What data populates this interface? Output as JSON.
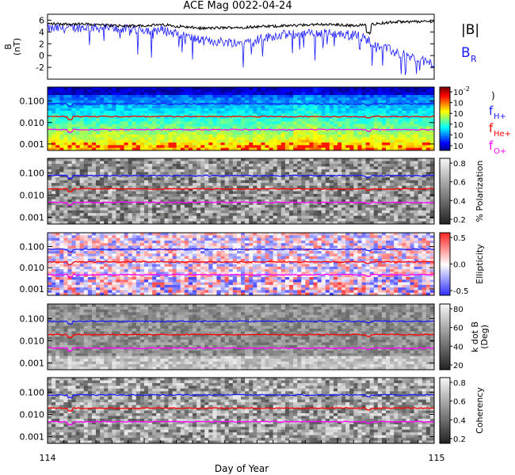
{
  "title": "ACE Mag 0022-04-24",
  "x_axis": {
    "label": "Day of Year",
    "range": [
      114,
      115
    ],
    "tick_labels": [
      "114",
      "115"
    ]
  },
  "colors": {
    "btotal": "#000000",
    "br": "#1a1aff",
    "f_h": "#1a1aff",
    "f_he": "#ff0000",
    "f_o": "#ff00ff"
  },
  "panels": [
    {
      "id": "mag",
      "type": "line",
      "ylabel_top": "B",
      "ylabel_bottom": "(nT)",
      "ylim": [
        -4,
        7
      ],
      "yticks": [
        "6",
        "4",
        "2",
        "0",
        "-2"
      ],
      "legend": [
        "|B|",
        "B"
      ],
      "legend_sub": "R"
    },
    {
      "id": "power",
      "type": "heatmap",
      "yticks": [
        "0.100",
        "0.010",
        "0.001"
      ],
      "colorbar_ticks": [
        "10",
        "10",
        "10",
        "10",
        "10",
        "10"
      ],
      "colorbar_exps": [
        "-2",
        "",
        "",
        "",
        "",
        ""
      ],
      "colorbar_label": ")",
      "legend": [
        {
          "text": "f",
          "sub": "H+"
        },
        {
          "text": "f",
          "sub": "He+"
        },
        {
          "text": "f",
          "sub": "O+"
        }
      ]
    },
    {
      "id": "polarization",
      "type": "heatmap",
      "yticks": [
        "0.100",
        "0.010",
        "0.001"
      ],
      "colorbar_ticks": [
        "0.8",
        "0.6",
        "0.4",
        "0.2"
      ],
      "colorbar_label": "% Polarization"
    },
    {
      "id": "ellipticity",
      "type": "heatmap",
      "yticks": [
        "0.100",
        "0.010",
        "0.001"
      ],
      "colorbar_ticks": [
        "0.5",
        "0.0",
        "-0.5"
      ],
      "colorbar_label": "Ellipticity"
    },
    {
      "id": "kdotb",
      "type": "heatmap",
      "yticks": [
        "0.100",
        "0.010",
        "0.001"
      ],
      "colorbar_ticks": [
        "80",
        "60",
        "40",
        "20"
      ],
      "colorbar_label_1": "k dot B",
      "colorbar_label_2": "(Deg)"
    },
    {
      "id": "coherency",
      "type": "heatmap",
      "yticks": [
        "0.100",
        "0.010",
        "0.001"
      ],
      "colorbar_ticks": [
        "0.8",
        "0.6",
        "0.4",
        "0.2"
      ],
      "colorbar_label": "Coherency"
    }
  ],
  "chart_data": {
    "type": "line",
    "title": "ACE Mag 0022-04-24",
    "xlabel": "Day of Year",
    "xlim": [
      114,
      115
    ],
    "ylim": [
      -4,
      7
    ],
    "series": [
      {
        "name": "|B|",
        "x": [
          114.0,
          114.1,
          114.2,
          114.3,
          114.4,
          114.5,
          114.6,
          114.7,
          114.8,
          114.9,
          115.0
        ],
        "values": [
          5.4,
          5.3,
          5.0,
          5.2,
          4.6,
          4.8,
          5.0,
          5.3,
          5.1,
          5.7,
          5.8
        ]
      },
      {
        "name": "B",
        "x": [
          114.0,
          114.1,
          114.2,
          114.3,
          114.4,
          114.5,
          114.6,
          114.7,
          114.8,
          114.9,
          115.0
        ],
        "values": [
          4.5,
          4.8,
          4.5,
          4.3,
          2.5,
          2.2,
          3.5,
          3.8,
          3.5,
          0.5,
          -1.5
        ]
      }
    ]
  }
}
